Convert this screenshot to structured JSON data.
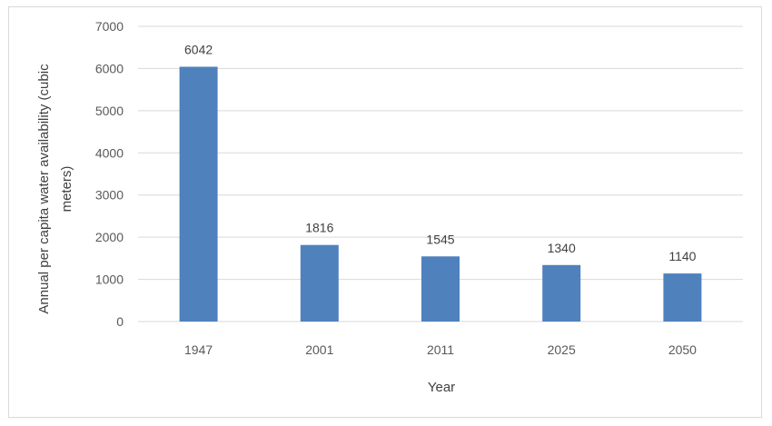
{
  "chart_data": {
    "type": "bar",
    "categories": [
      "1947",
      "2001",
      "2011",
      "2025",
      "2050"
    ],
    "values": [
      6042,
      1816,
      1545,
      1340,
      1140
    ],
    "data_labels": [
      "6042",
      "1816",
      "1545",
      "1340",
      "1140"
    ],
    "title": "",
    "xlabel": "Year",
    "ylabel_lines": [
      "Annual per capita water availability (cubic",
      "meters)"
    ],
    "ylim": [
      0,
      7000
    ],
    "yticks": [
      0,
      1000,
      2000,
      3000,
      4000,
      5000,
      6000,
      7000
    ],
    "grid": true,
    "legend": "none",
    "bar_color": "#4f81bd",
    "grid_color": "#d9d9d9"
  }
}
